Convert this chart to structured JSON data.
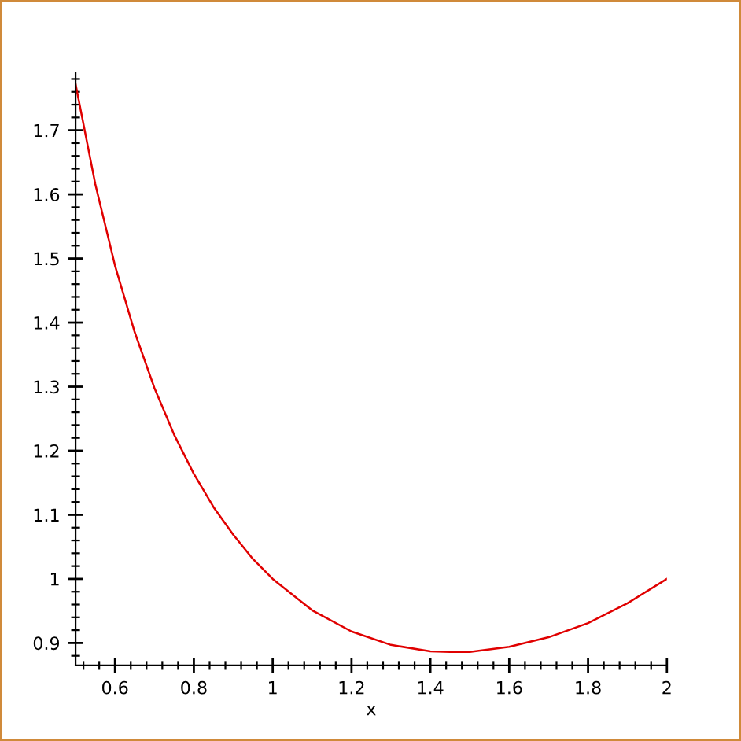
{
  "chart_data": {
    "type": "line",
    "xlabel": "x",
    "x": [
      0.5,
      0.55,
      0.6,
      0.65,
      0.7,
      0.75,
      0.8,
      0.85,
      0.9,
      0.95,
      1.0,
      1.1,
      1.2,
      1.3,
      1.4,
      1.45,
      1.5,
      1.6,
      1.7,
      1.8,
      1.9,
      2.0
    ],
    "series": [
      {
        "color": "#e00000",
        "values": [
          1.772,
          1.616,
          1.489,
          1.385,
          1.298,
          1.225,
          1.164,
          1.112,
          1.069,
          1.031,
          1.0,
          0.951,
          0.918,
          0.897,
          0.887,
          0.886,
          0.886,
          0.894,
          0.909,
          0.931,
          0.962,
          1.0
        ]
      }
    ],
    "xlim": [
      0.5,
      2
    ],
    "ylim": [
      0.865,
      1.79
    ],
    "xticks": [
      0.6,
      0.8,
      1,
      1.2,
      1.4,
      1.6,
      1.8,
      2
    ],
    "yticks": [
      0.9,
      1,
      1.1,
      1.2,
      1.3,
      1.4,
      1.5,
      1.6,
      1.7
    ],
    "grid": false,
    "legend": false,
    "marker": "none",
    "line_style": "solid"
  }
}
